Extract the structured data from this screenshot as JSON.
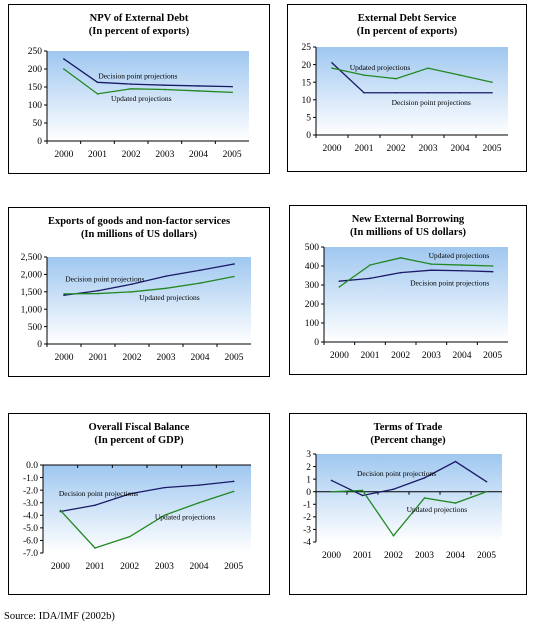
{
  "source": "Source: IDA/IMF (2002b)",
  "colors": {
    "decision": "#1a1a66",
    "updated": "#228822",
    "plotTop": "#9fc7f0",
    "plotBottom": "#ffffff"
  },
  "chart_data": [
    {
      "type": "line",
      "title": "NPV of External Debt",
      "subtitle": "(In percent of exports)",
      "x": [
        "2000",
        "2001",
        "2002",
        "2003",
        "2004",
        "2005"
      ],
      "ylim": [
        0,
        250
      ],
      "yticks": [
        0,
        50,
        100,
        150,
        200,
        250
      ],
      "yticklabels": [
        "0",
        "50",
        "100",
        "150",
        "200",
        "250"
      ],
      "series": [
        {
          "name": "Decision point projections",
          "values": [
            228,
            163,
            158,
            155,
            153,
            151
          ]
        },
        {
          "name": "Updated projections",
          "values": [
            200,
            131,
            145,
            143,
            139,
            135
          ]
        }
      ]
    },
    {
      "type": "line",
      "title": "External Debt Service",
      "subtitle": "(In percent of exports)",
      "x": [
        "2000",
        "2001",
        "2002",
        "2003",
        "2004",
        "2005"
      ],
      "ylim": [
        0,
        25
      ],
      "yticks": [
        0,
        5,
        10,
        15,
        20,
        25
      ],
      "yticklabels": [
        "0",
        "5",
        "10",
        "15",
        "20",
        "25"
      ],
      "series": [
        {
          "name": "Decision point projections",
          "values": [
            20.5,
            12,
            12,
            12,
            12,
            12
          ]
        },
        {
          "name": "Updated projections",
          "values": [
            19,
            17,
            16,
            19,
            17,
            15
          ]
        }
      ]
    },
    {
      "type": "line",
      "title": "Exports of goods and non-factor services",
      "subtitle": "(In millions of US dollars)",
      "x": [
        "2000",
        "2001",
        "2002",
        "2003",
        "2004",
        "2005"
      ],
      "ylim": [
        0,
        2500
      ],
      "yticks": [
        0,
        500,
        1000,
        1500,
        2000,
        2500
      ],
      "yticklabels": [
        "0",
        "500",
        "1,000",
        "1,500",
        "2,000",
        "2,500"
      ],
      "series": [
        {
          "name": "Decision point projections",
          "values": [
            1400,
            1530,
            1720,
            1950,
            2120,
            2300
          ]
        },
        {
          "name": "Updated projections",
          "values": [
            1440,
            1450,
            1500,
            1600,
            1750,
            1940
          ]
        }
      ]
    },
    {
      "type": "line",
      "title": "New External Borrowing",
      "subtitle": "(In millions of US dollars)",
      "x": [
        "2000",
        "2001",
        "2002",
        "2003",
        "2004",
        "2005"
      ],
      "ylim": [
        0,
        500
      ],
      "yticks": [
        0,
        100,
        200,
        300,
        400,
        500
      ],
      "yticklabels": [
        "0",
        "100",
        "200",
        "300",
        "400",
        "500"
      ],
      "series": [
        {
          "name": "Decision point projections",
          "values": [
            320,
            335,
            365,
            378,
            375,
            370
          ]
        },
        {
          "name": "Updated projections",
          "values": [
            290,
            405,
            443,
            410,
            405,
            400
          ]
        }
      ]
    },
    {
      "type": "line",
      "title": "Overall Fiscal Balance",
      "subtitle": "(In percent of GDP)",
      "x": [
        "2000",
        "2001",
        "2002",
        "2003",
        "2004",
        "2005"
      ],
      "ylim": [
        -7,
        0
      ],
      "yticks": [
        0,
        -1,
        -2,
        -3,
        -4,
        -5,
        -6,
        -7
      ],
      "yticklabels": [
        "0.0",
        "-1.0",
        "-2.0",
        "-3.0",
        "-4.0",
        "-5.0",
        "-6.0",
        "-7.0"
      ],
      "series": [
        {
          "name": "Decision point projections",
          "values": [
            -3.7,
            -3.2,
            -2.3,
            -1.8,
            -1.6,
            -1.3
          ]
        },
        {
          "name": "Updated projections",
          "values": [
            -3.6,
            -6.6,
            -5.7,
            -4.0,
            -3.0,
            -2.1
          ]
        }
      ]
    },
    {
      "type": "line",
      "title": "Terms of Trade",
      "subtitle": "(Percent change)",
      "x": [
        "2000",
        "2001",
        "2002",
        "2003",
        "2004",
        "2005"
      ],
      "ylim": [
        -4,
        3
      ],
      "yticks": [
        3,
        2,
        1,
        0,
        -1,
        -2,
        -3,
        -4
      ],
      "yticklabels": [
        "3",
        "2",
        "1",
        "0",
        "-1",
        "-2",
        "-3",
        "-4"
      ],
      "series": [
        {
          "name": "Decision point projections",
          "values": [
            0.9,
            -0.3,
            0.2,
            1.1,
            2.4,
            0.8
          ]
        },
        {
          "name": "Updated projections",
          "values": [
            0,
            0.1,
            -3.5,
            -0.5,
            -0.9,
            0
          ]
        }
      ]
    }
  ]
}
